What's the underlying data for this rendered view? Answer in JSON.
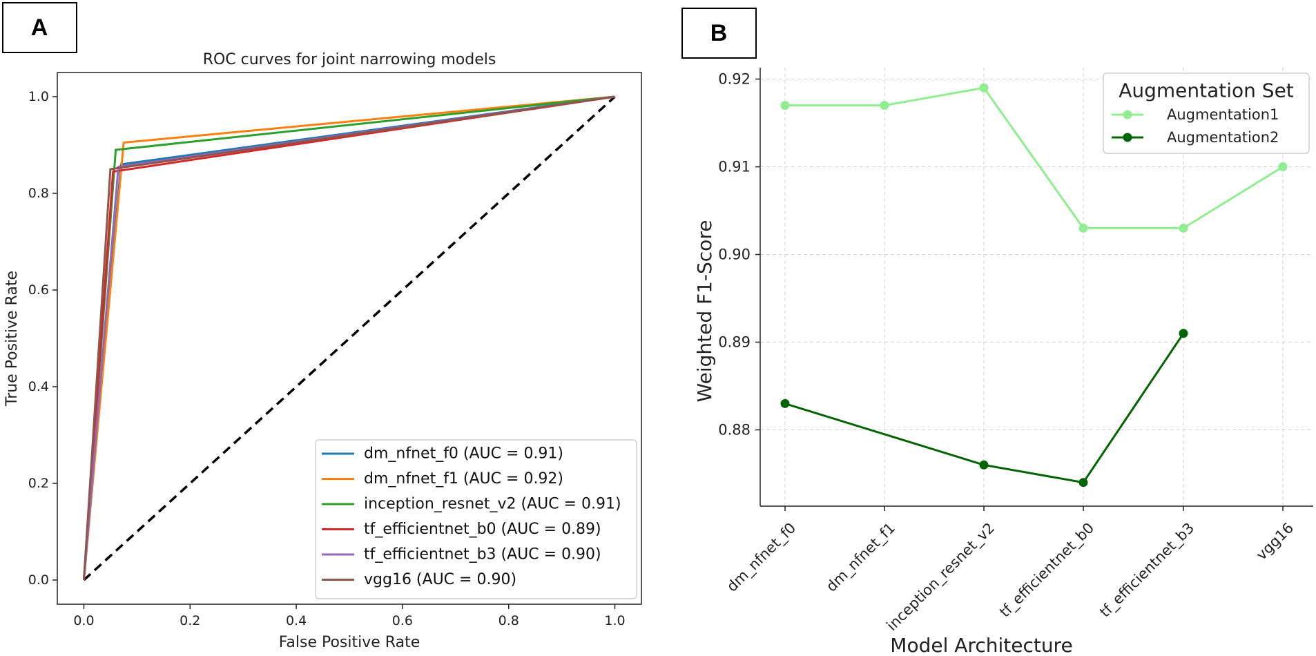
{
  "labels": {
    "panel_a": "A",
    "panel_b": "B"
  },
  "chart_data": [
    {
      "type": "line",
      "title": "ROC curves for joint narrowing models",
      "xlabel": "False Positive Rate",
      "ylabel": "True Positive Rate",
      "xlim": [
        -0.05,
        1.05
      ],
      "ylim": [
        -0.05,
        1.05
      ],
      "xticks": [
        "0.0",
        "0.2",
        "0.4",
        "0.6",
        "0.8",
        "1.0"
      ],
      "yticks": [
        "0.0",
        "0.2",
        "0.4",
        "0.6",
        "0.8",
        "1.0"
      ],
      "grid": false,
      "legend_position": "bottom-right",
      "series": [
        {
          "name": "dm_nfnet_f0 (AUC = 0.91)",
          "color": "#1f77b4",
          "x": [
            0,
            0.07,
            1
          ],
          "y": [
            0,
            0.86,
            1
          ]
        },
        {
          "name": "dm_nfnet_f1 (AUC = 0.92)",
          "color": "#ff7f0e",
          "x": [
            0,
            0.075,
            1
          ],
          "y": [
            0,
            0.905,
            1
          ]
        },
        {
          "name": "inception_resnet_v2 (AUC = 0.91)",
          "color": "#2ca02c",
          "x": [
            0,
            0.06,
            1
          ],
          "y": [
            0,
            0.89,
            1
          ]
        },
        {
          "name": "tf_efficientnet_b0 (AUC = 0.89)",
          "color": "#d62728",
          "x": [
            0,
            0.055,
            1
          ],
          "y": [
            0,
            0.845,
            1
          ]
        },
        {
          "name": "tf_efficientnet_b3 (AUC = 0.90)",
          "color": "#9467bd",
          "x": [
            0,
            0.065,
            1
          ],
          "y": [
            0,
            0.855,
            1
          ]
        },
        {
          "name": "vgg16 (AUC = 0.90)",
          "color": "#8c564b",
          "x": [
            0,
            0.05,
            1
          ],
          "y": [
            0,
            0.85,
            1
          ]
        }
      ],
      "reference_line": {
        "x": [
          0,
          1
        ],
        "y": [
          0,
          1
        ],
        "color": "#000000",
        "style": "dashed"
      }
    },
    {
      "type": "line",
      "title": "",
      "xlabel": "Model Architecture",
      "ylabel": "Weighted F1-Score",
      "ylim": [
        0.8713,
        0.9213
      ],
      "yticks": [
        "0.88",
        "0.89",
        "0.90",
        "0.91",
        "0.92"
      ],
      "ytick_values": [
        0.88,
        0.89,
        0.9,
        0.91,
        0.92
      ],
      "categories": [
        "dm_nfnet_f0",
        "dm_nfnet_f1",
        "inception_resnet_v2",
        "tf_efficientnet_b0",
        "tf_efficientnet_b3",
        "vgg16"
      ],
      "grid": true,
      "legend_title": "Augmentation Set",
      "legend_position": "top-right",
      "series": [
        {
          "name": "Augmentation1",
          "color": "#90ee90",
          "values": [
            0.917,
            0.917,
            0.919,
            0.903,
            0.903,
            0.91
          ]
        },
        {
          "name": "Augmentation2",
          "color": "#006400",
          "values": [
            0.883,
            null,
            0.876,
            0.874,
            0.891,
            null
          ]
        }
      ]
    }
  ]
}
